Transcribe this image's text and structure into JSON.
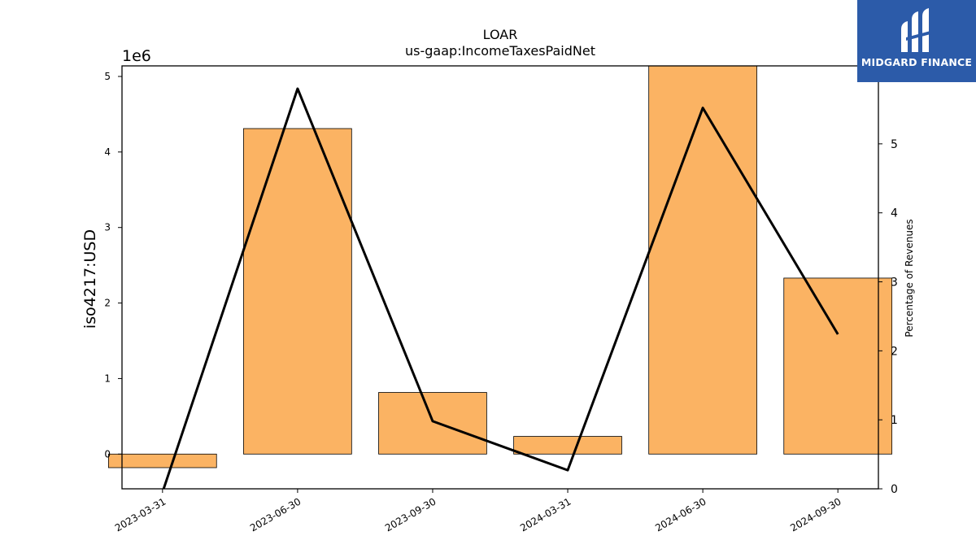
{
  "chart_data": {
    "type": "bar",
    "title": "LOAR",
    "subtitle": "us-gaap:IncomeTaxesPaidNet",
    "categories": [
      "2023-03-31",
      "2023-06-30",
      "2023-09-30",
      "2024-03-31",
      "2024-06-30",
      "2024-09-30"
    ],
    "series": [
      {
        "axis": "left",
        "type": "bar",
        "color": "#fbb363",
        "values": [
          -180000,
          4310000,
          816000,
          234000,
          5140000,
          2330000
        ]
      },
      {
        "axis": "right",
        "type": "line",
        "color": "#000000",
        "values": [
          -0.05,
          5.8,
          0.98,
          0.27,
          5.52,
          2.24
        ]
      }
    ],
    "y_left": {
      "label": "iso4217:USD",
      "multiplier_label": "1e6",
      "scale": 1000000,
      "ylim": [
        -460000,
        5140000
      ],
      "ticks": [
        0,
        1,
        2,
        3,
        4,
        5
      ]
    },
    "y_right": {
      "label": "Percentage of Revenues",
      "ylim": [
        0,
        6.13
      ],
      "ticks": [
        0,
        1,
        2,
        3,
        4,
        5
      ]
    },
    "grid": false,
    "legend": "none"
  },
  "logo": {
    "name": "MIDGARD FINANCE"
  }
}
